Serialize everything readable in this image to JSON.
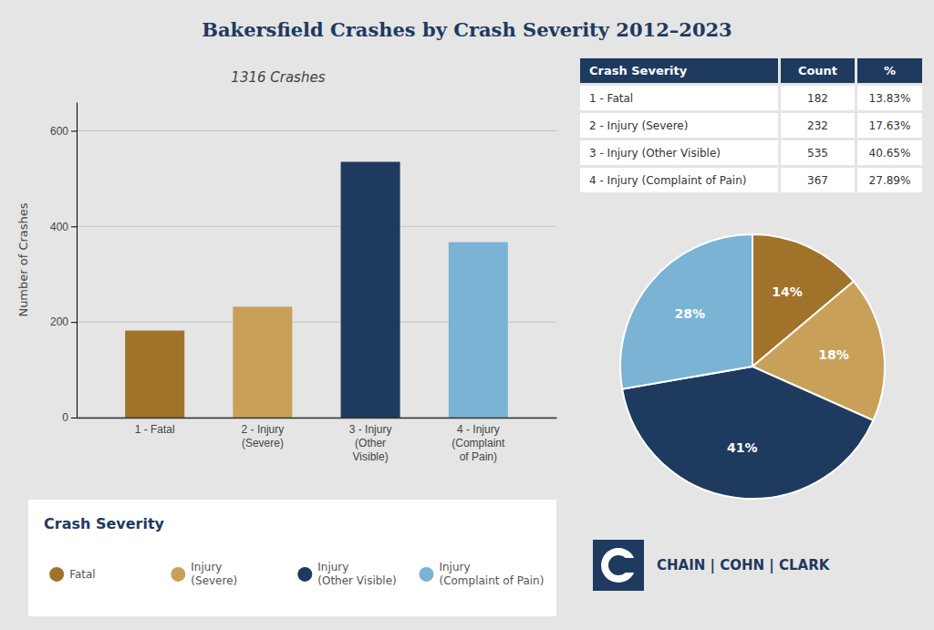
{
  "chart_data": [
    {
      "type": "bar",
      "title": "Bakersfield Crashes by Crash Severity 2012–2023",
      "subtitle": "1316 Crashes",
      "categories": [
        "1 - Fatal",
        "2 - Injury\n(Severe)",
        "3 - Injury\n(Other\nVisible)",
        "4 - Injury\n(Complaint\nof Pain)"
      ],
      "values": [
        182,
        232,
        535,
        367
      ],
      "colors": [
        "#a0722a",
        "#c9a05a",
        "#1e3a5f",
        "#7ab3d4"
      ],
      "ylabel": "Number of Crashes",
      "ylim": [
        0,
        660
      ],
      "yticks": [
        0,
        200,
        400,
        600
      ],
      "grid": true
    },
    {
      "type": "table",
      "columns": [
        "Crash Severity",
        "Count",
        "%"
      ],
      "rows": [
        [
          "1 - Fatal",
          "182",
          "13.83%"
        ],
        [
          "2 - Injury (Severe)",
          "232",
          "17.63%"
        ],
        [
          "3 - Injury (Other Visible)",
          "535",
          "40.65%"
        ],
        [
          "4 - Injury (Complaint of Pain)",
          "367",
          "27.89%"
        ]
      ]
    },
    {
      "type": "pie",
      "categories": [
        "Fatal",
        "Injury\n(Severe)",
        "Injury\n(Other Visible)",
        "Injury\n(Complaint of Pain)"
      ],
      "values": [
        14,
        18,
        41,
        28
      ],
      "value_labels": [
        "14%",
        "18%",
        "41%",
        "28%"
      ],
      "colors": [
        "#a0722a",
        "#c9a05a",
        "#1e3a5f",
        "#7ab3d4"
      ],
      "data_labels": true,
      "legend": "bottom-left",
      "legend_title": "Crash Severity",
      "annotations": [
        "CHAIN | COHN | CLARK"
      ]
    }
  ]
}
